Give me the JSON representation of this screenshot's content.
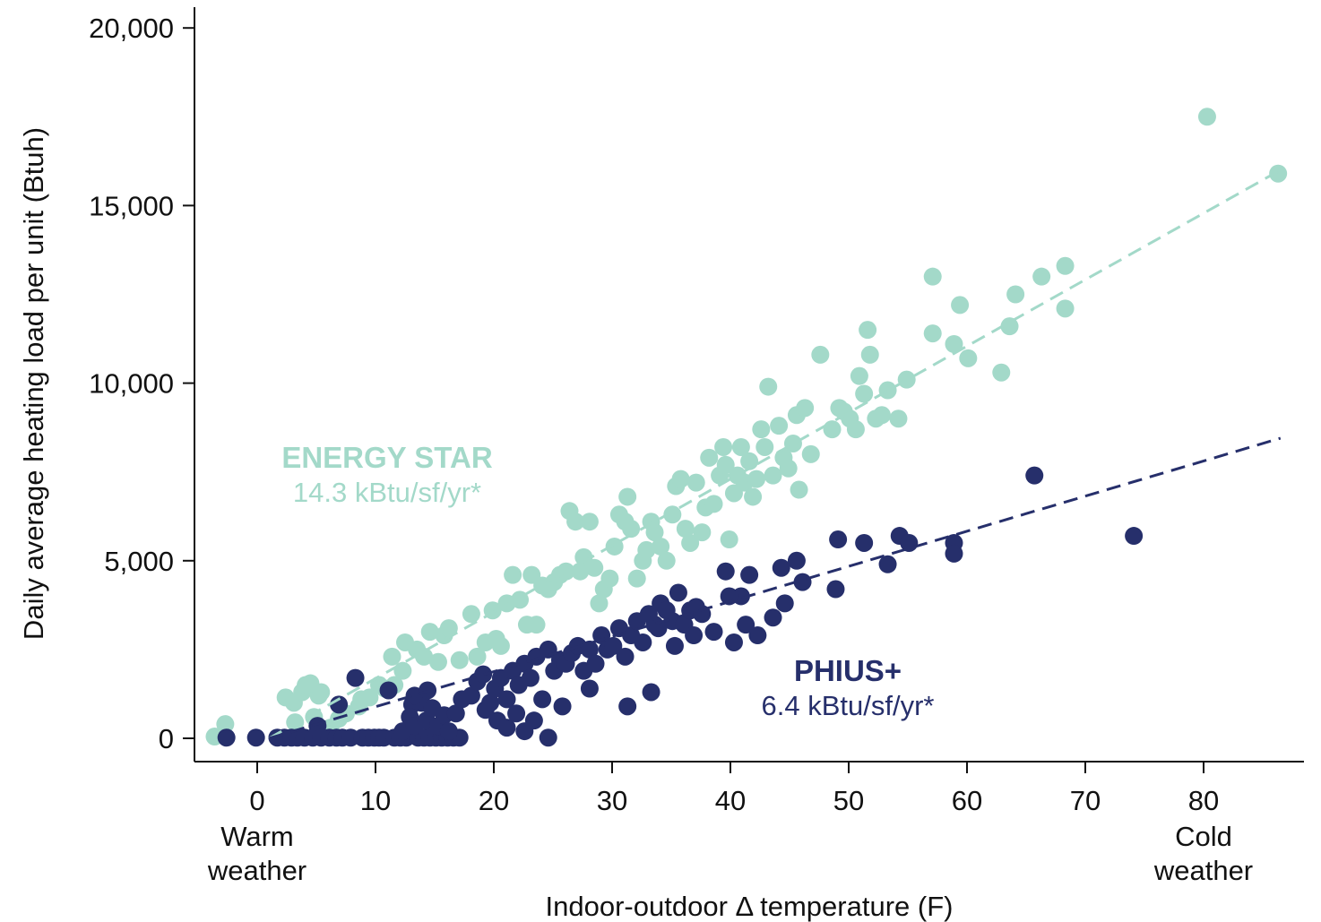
{
  "colors": {
    "energy_star": "#a3d9c9",
    "phius": "#262f6b",
    "axis": "#111111"
  },
  "annotations": {
    "energy_star_title": "ENERGY STAR",
    "energy_star_sub": "14.3 kBtu/sf/yr*",
    "phius_title": "PHIUS+",
    "phius_sub": "6.4 kBtu/sf/yr*"
  },
  "x_end_labels": {
    "warm_line1": "Warm",
    "warm_line2": "weather",
    "cold_line1": "Cold",
    "cold_line2": "weather"
  },
  "chart_data": {
    "type": "scatter",
    "title": "",
    "xlabel": "Indoor-outdoor Δ temperature (F)",
    "ylabel": "Daily average heating load per unit (Btuh)",
    "xlim": [
      -5,
      88
    ],
    "ylim": [
      -600,
      20600
    ],
    "xticks": [
      0,
      10,
      20,
      30,
      40,
      50,
      60,
      70,
      80
    ],
    "xtick_labels": [
      "0",
      "10",
      "20",
      "30",
      "40",
      "50",
      "60",
      "70",
      "80"
    ],
    "yticks": [
      0,
      5000,
      10000,
      15000,
      20000
    ],
    "ytick_labels": [
      "0",
      "5,000",
      "10,000",
      "15,000",
      "20,000"
    ],
    "grid": false,
    "legend": "none",
    "series": [
      {
        "name": "ENERGY STAR",
        "color": "#a3d9c9",
        "fit": {
          "style": "dashed",
          "x": [
            1,
            86.5
          ],
          "y": [
            0,
            16000
          ]
        },
        "points": [
          [
            -3.6,
            50
          ],
          [
            -2.7,
            400
          ],
          [
            2.4,
            1150
          ],
          [
            3.1,
            1000
          ],
          [
            3.8,
            1300
          ],
          [
            4.1,
            1500
          ],
          [
            4.5,
            1550
          ],
          [
            5.2,
            1200
          ],
          [
            5.4,
            1300
          ],
          [
            3.2,
            450
          ],
          [
            4.8,
            600
          ],
          [
            6.2,
            300
          ],
          [
            6.9,
            550
          ],
          [
            7.5,
            700
          ],
          [
            8.6,
            900
          ],
          [
            8.8,
            1100
          ],
          [
            9.5,
            1150
          ],
          [
            10.3,
            1500
          ],
          [
            10.8,
            1400
          ],
          [
            11.6,
            1500
          ],
          [
            11.4,
            2300
          ],
          [
            12.3,
            1900
          ],
          [
            12.5,
            2700
          ],
          [
            13.5,
            2500
          ],
          [
            14.1,
            2300
          ],
          [
            14.6,
            3000
          ],
          [
            15.3,
            2150
          ],
          [
            15.8,
            2900
          ],
          [
            16.2,
            3100
          ],
          [
            17.1,
            2200
          ],
          [
            18.1,
            3500
          ],
          [
            18.6,
            2300
          ],
          [
            19.3,
            2700
          ],
          [
            19.9,
            3600
          ],
          [
            20.2,
            2800
          ],
          [
            20.6,
            2600
          ],
          [
            21.1,
            3800
          ],
          [
            21.6,
            4600
          ],
          [
            22.2,
            3900
          ],
          [
            22.8,
            3200
          ],
          [
            23.2,
            4600
          ],
          [
            23.6,
            3200
          ],
          [
            24.1,
            4300
          ],
          [
            24.6,
            4200
          ],
          [
            25.1,
            4400
          ],
          [
            25.6,
            4600
          ],
          [
            26.1,
            4700
          ],
          [
            26.4,
            6400
          ],
          [
            26.9,
            6100
          ],
          [
            27.3,
            4700
          ],
          [
            27.6,
            5100
          ],
          [
            28.1,
            6100
          ],
          [
            28.5,
            4800
          ],
          [
            28.9,
            3800
          ],
          [
            29.3,
            4200
          ],
          [
            29.8,
            4500
          ],
          [
            30.2,
            5400
          ],
          [
            30.6,
            6300
          ],
          [
            31.1,
            6100
          ],
          [
            31.3,
            6800
          ],
          [
            31.6,
            5900
          ],
          [
            32.1,
            4500
          ],
          [
            32.6,
            5000
          ],
          [
            32.9,
            5300
          ],
          [
            33.3,
            6100
          ],
          [
            33.6,
            5800
          ],
          [
            34.1,
            5400
          ],
          [
            34.6,
            5000
          ],
          [
            35.1,
            6300
          ],
          [
            35.4,
            7100
          ],
          [
            35.8,
            7300
          ],
          [
            36.2,
            5900
          ],
          [
            36.6,
            5500
          ],
          [
            37.1,
            7200
          ],
          [
            37.6,
            5800
          ],
          [
            37.9,
            6500
          ],
          [
            38.2,
            7900
          ],
          [
            38.6,
            6600
          ],
          [
            39.1,
            7400
          ],
          [
            39.4,
            8200
          ],
          [
            39.6,
            7700
          ],
          [
            39.9,
            5600
          ],
          [
            40.3,
            6900
          ],
          [
            40.6,
            7400
          ],
          [
            40.9,
            8200
          ],
          [
            41.2,
            7200
          ],
          [
            41.6,
            7800
          ],
          [
            41.9,
            6800
          ],
          [
            42.2,
            7300
          ],
          [
            42.6,
            8700
          ],
          [
            42.9,
            8200
          ],
          [
            43.2,
            9900
          ],
          [
            43.6,
            7400
          ],
          [
            44.1,
            8800
          ],
          [
            44.5,
            7900
          ],
          [
            44.9,
            7600
          ],
          [
            45.3,
            8300
          ],
          [
            45.6,
            9100
          ],
          [
            45.8,
            7000
          ],
          [
            46.3,
            9300
          ],
          [
            46.8,
            8000
          ],
          [
            47.6,
            10800
          ],
          [
            48.6,
            8700
          ],
          [
            49.2,
            9300
          ],
          [
            49.6,
            9200
          ],
          [
            50.1,
            9000
          ],
          [
            50.6,
            8700
          ],
          [
            50.9,
            10200
          ],
          [
            51.3,
            9700
          ],
          [
            51.6,
            11500
          ],
          [
            51.8,
            10800
          ],
          [
            52.3,
            9000
          ],
          [
            52.8,
            9100
          ],
          [
            53.3,
            9800
          ],
          [
            54.2,
            9000
          ],
          [
            54.9,
            10100
          ],
          [
            57.1,
            13000
          ],
          [
            57.1,
            11400
          ],
          [
            58.9,
            11100
          ],
          [
            59.4,
            12200
          ],
          [
            60.1,
            10700
          ],
          [
            62.9,
            10300
          ],
          [
            63.6,
            11600
          ],
          [
            64.1,
            12500
          ],
          [
            66.3,
            13000
          ],
          [
            68.3,
            13300
          ],
          [
            68.3,
            12100
          ],
          [
            80.3,
            17500
          ],
          [
            86.3,
            15900
          ]
        ]
      },
      {
        "name": "PHIUS+",
        "color": "#262f6b",
        "fit": {
          "style": "dashed",
          "x": [
            1,
            86.5
          ],
          "y": [
            0,
            8450
          ]
        },
        "points": [
          [
            -2.6,
            20
          ],
          [
            -0.1,
            20
          ],
          [
            1.7,
            20
          ],
          [
            2.3,
            20
          ],
          [
            2.9,
            20
          ],
          [
            3.4,
            20
          ],
          [
            4.0,
            20
          ],
          [
            4.7,
            20
          ],
          [
            5.1,
            350
          ],
          [
            5.4,
            20
          ],
          [
            6.1,
            20
          ],
          [
            6.7,
            20
          ],
          [
            7.2,
            20
          ],
          [
            6.9,
            950
          ],
          [
            7.9,
            20
          ],
          [
            8.3,
            1700
          ],
          [
            8.9,
            20
          ],
          [
            9.4,
            20
          ],
          [
            9.9,
            20
          ],
          [
            10.3,
            20
          ],
          [
            10.7,
            20
          ],
          [
            11.1,
            1350
          ],
          [
            11.6,
            20
          ],
          [
            12.1,
            20
          ],
          [
            12.6,
            20
          ],
          [
            13.1,
            950
          ],
          [
            13.6,
            20
          ],
          [
            14.1,
            20
          ],
          [
            14.6,
            20
          ],
          [
            15.1,
            20
          ],
          [
            15.6,
            20
          ],
          [
            16.1,
            20
          ],
          [
            16.6,
            20
          ],
          [
            17.1,
            20
          ],
          [
            12.3,
            200
          ],
          [
            12.9,
            600
          ],
          [
            13.3,
            350
          ],
          [
            13.9,
            1000
          ],
          [
            14.3,
            500
          ],
          [
            14.8,
            850
          ],
          [
            15.3,
            350
          ],
          [
            15.8,
            650
          ],
          [
            16.2,
            200
          ],
          [
            16.8,
            700
          ],
          [
            13.3,
            1200
          ],
          [
            14.4,
            1350
          ],
          [
            17.3,
            1100
          ],
          [
            18.1,
            1200
          ],
          [
            18.6,
            1600
          ],
          [
            19.1,
            1800
          ],
          [
            19.3,
            800
          ],
          [
            19.7,
            1000
          ],
          [
            20.1,
            1400
          ],
          [
            20.6,
            1700
          ],
          [
            21.1,
            1100
          ],
          [
            21.6,
            1900
          ],
          [
            22.1,
            1500
          ],
          [
            22.6,
            2100
          ],
          [
            23.1,
            1700
          ],
          [
            23.6,
            2300
          ],
          [
            24.1,
            1100
          ],
          [
            24.6,
            2500
          ],
          [
            25.1,
            1900
          ],
          [
            25.6,
            2200
          ],
          [
            26.1,
            2100
          ],
          [
            26.6,
            2400
          ],
          [
            27.1,
            2600
          ],
          [
            27.6,
            1900
          ],
          [
            28.1,
            2500
          ],
          [
            28.6,
            2100
          ],
          [
            29.1,
            2900
          ],
          [
            29.6,
            2500
          ],
          [
            30.1,
            2600
          ],
          [
            30.6,
            3100
          ],
          [
            31.1,
            2300
          ],
          [
            31.6,
            2900
          ],
          [
            32.1,
            3300
          ],
          [
            32.6,
            2700
          ],
          [
            33.1,
            3500
          ],
          [
            33.6,
            3200
          ],
          [
            34.1,
            3800
          ],
          [
            34.6,
            3600
          ],
          [
            35.1,
            3300
          ],
          [
            35.6,
            4100
          ],
          [
            36.1,
            3200
          ],
          [
            36.6,
            3600
          ],
          [
            37.1,
            3700
          ],
          [
            37.6,
            3500
          ],
          [
            20.3,
            500
          ],
          [
            21.1,
            300
          ],
          [
            21.9,
            700
          ],
          [
            22.6,
            200
          ],
          [
            23.4,
            500
          ],
          [
            24.6,
            20
          ],
          [
            25.8,
            900
          ],
          [
            28.1,
            1400
          ],
          [
            31.3,
            900
          ],
          [
            33.3,
            1300
          ],
          [
            36.9,
            2900
          ],
          [
            38.6,
            3000
          ],
          [
            39.6,
            4700
          ],
          [
            40.3,
            2700
          ],
          [
            40.9,
            4000
          ],
          [
            41.3,
            3200
          ],
          [
            41.6,
            4600
          ],
          [
            42.3,
            2900
          ],
          [
            43.6,
            3400
          ],
          [
            44.3,
            4800
          ],
          [
            44.6,
            3800
          ],
          [
            45.6,
            5000
          ],
          [
            46.1,
            4400
          ],
          [
            48.9,
            4200
          ],
          [
            49.1,
            5600
          ],
          [
            51.3,
            5500
          ],
          [
            53.3,
            4900
          ],
          [
            54.3,
            5700
          ],
          [
            55.1,
            5500
          ],
          [
            58.9,
            5500
          ],
          [
            58.9,
            5200
          ],
          [
            65.7,
            7400
          ],
          [
            74.1,
            5700
          ],
          [
            39.9,
            4000
          ],
          [
            35.3,
            2600
          ],
          [
            33.9,
            3100
          ]
        ]
      }
    ]
  }
}
